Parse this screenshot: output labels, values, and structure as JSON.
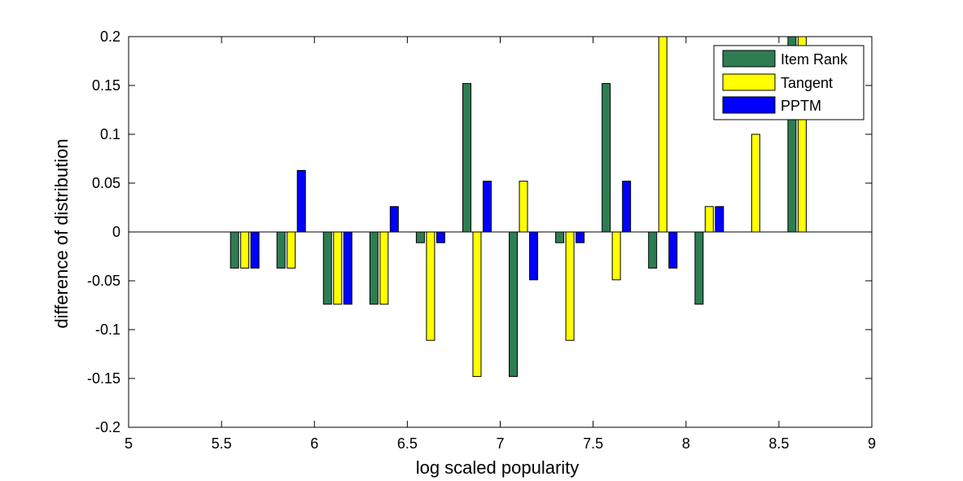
{
  "chart_data": {
    "type": "bar",
    "xlabel": "log scaled popularity",
    "ylabel": "difference of distribution",
    "xlim": [
      5,
      9
    ],
    "ylim": [
      -0.2,
      0.2
    ],
    "xticks": [
      "5",
      "5.5",
      "6",
      "6.5",
      "7",
      "7.5",
      "8",
      "8.5",
      "9"
    ],
    "yticks": [
      "-0.2",
      "-0.15",
      "-0.1",
      "-0.05",
      "0",
      "0.05",
      "0.1",
      "0.15",
      "0.2"
    ],
    "x": [
      5.625,
      5.875,
      6.125,
      6.375,
      6.625,
      6.875,
      7.125,
      7.375,
      7.625,
      7.875,
      8.125,
      8.375,
      8.625
    ],
    "series": [
      {
        "name": "Item Rank",
        "color": "#2e7d52",
        "values": [
          -0.037,
          -0.037,
          -0.074,
          -0.074,
          -0.011,
          0.152,
          -0.148,
          -0.011,
          0.152,
          -0.037,
          -0.074,
          0,
          0.2
        ]
      },
      {
        "name": "Tangent",
        "color": "#ffff00",
        "values": [
          -0.037,
          -0.037,
          -0.074,
          -0.074,
          -0.111,
          -0.148,
          0.052,
          -0.111,
          -0.049,
          0.2,
          0.026,
          0.1,
          0.2
        ]
      },
      {
        "name": "PPTM",
        "color": "#0000ff",
        "values": [
          -0.037,
          0.063,
          -0.074,
          0.026,
          -0.011,
          0.052,
          -0.049,
          -0.011,
          0.052,
          -0.037,
          0.026,
          0,
          0
        ]
      }
    ],
    "grid": false,
    "legend_position": "top-right"
  }
}
